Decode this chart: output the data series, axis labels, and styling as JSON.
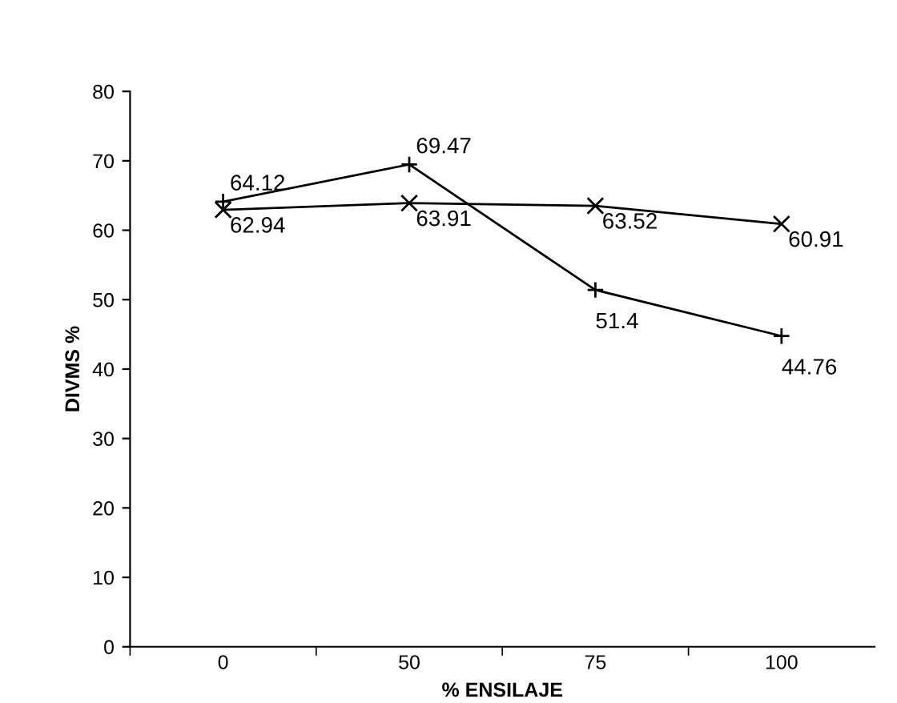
{
  "chart_data": {
    "type": "line",
    "xlabel": "% ENSILAJE",
    "ylabel": "DIVMS %",
    "categories": [
      "0",
      "50",
      "75",
      "100"
    ],
    "series": [
      {
        "color": "#000000",
        "marker": "plus",
        "values": [
          64.12,
          69.47,
          51.4,
          44.76
        ]
      },
      {
        "color": "#000000",
        "marker": "cross",
        "values": [
          62.94,
          63.91,
          63.52,
          60.91
        ]
      }
    ],
    "ylim": [
      0,
      80
    ],
    "yticks": [
      0,
      10,
      20,
      30,
      40,
      50,
      60,
      70,
      80
    ],
    "data_labels": true,
    "grid": false,
    "legend": false,
    "line_style": "solid"
  }
}
